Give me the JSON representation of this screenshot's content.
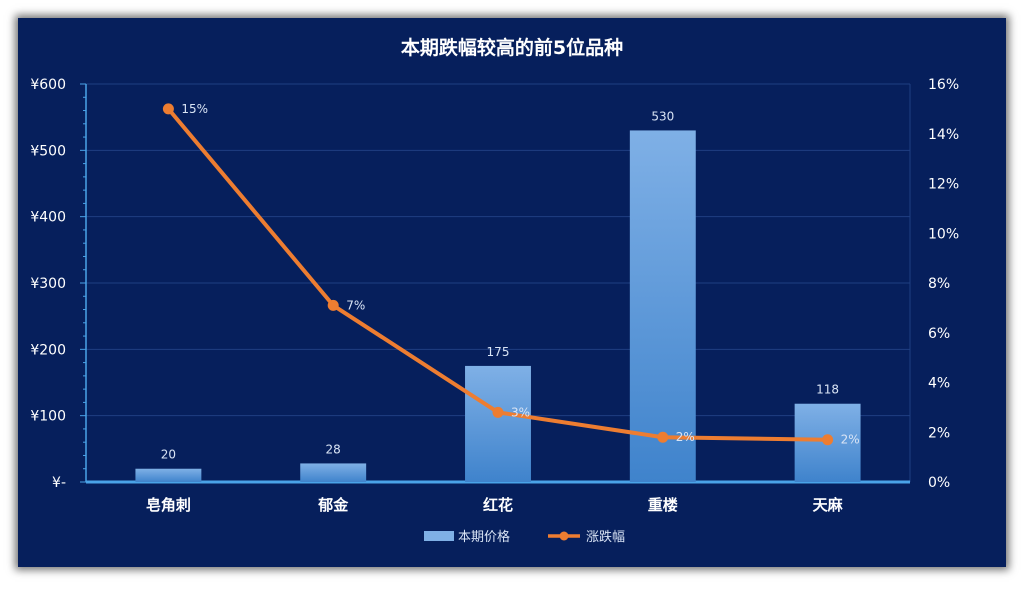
{
  "chart_data": {
    "type": "bar",
    "title": "本期跌幅较高的前5位品种",
    "categories": [
      "皂角刺",
      "郁金",
      "红花",
      "重楼",
      "天麻"
    ],
    "series": [
      {
        "name": "本期价格",
        "type": "bar",
        "axis": "left",
        "values": [
          20,
          28,
          175,
          530,
          118
        ],
        "labels": [
          "20",
          "28",
          "175",
          "530",
          "118"
        ],
        "color": "#5b9bd5"
      },
      {
        "name": "涨跌幅",
        "type": "line",
        "axis": "right",
        "values": [
          0.15,
          0.071,
          0.028,
          0.018,
          0.017
        ],
        "labels": [
          "15%",
          "7%",
          "3%",
          "2%",
          "2%"
        ],
        "color": "#ed7d31"
      }
    ],
    "y_left": {
      "range": [
        0,
        600
      ],
      "ticks": [
        0,
        100,
        200,
        300,
        400,
        500,
        600
      ],
      "tick_labels": [
        "¥-",
        "¥100",
        "¥200",
        "¥300",
        "¥400",
        "¥500",
        "¥600"
      ]
    },
    "y_right": {
      "range": [
        0,
        0.16
      ],
      "ticks": [
        0,
        0.02,
        0.04,
        0.06,
        0.08,
        0.1,
        0.12,
        0.14,
        0.16
      ],
      "tick_labels": [
        "0%",
        "2%",
        "4%",
        "6%",
        "8%",
        "10%",
        "12%",
        "14%",
        "16%"
      ]
    },
    "grid": true,
    "legend_position": "bottom",
    "colors": {
      "background": "#061f5c",
      "bar_top": "#7fb0e6",
      "bar_bottom": "#3f83cc",
      "line": "#ed7d31",
      "gridline": "#1f3f82",
      "axis": "#4aa3e8"
    }
  }
}
